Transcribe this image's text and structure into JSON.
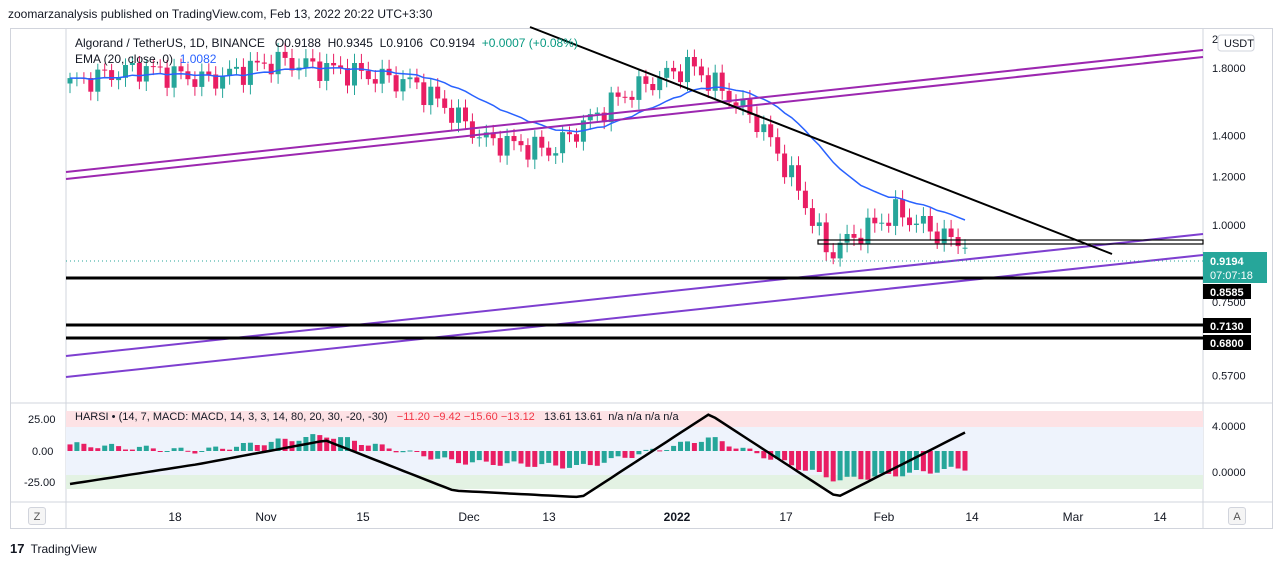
{
  "header": {
    "published": "zoomarzanalysis published on TradingView.com, Feb 13, 2022 20:22 UTC+3:30"
  },
  "legend": {
    "symbol": "Algorand / TetherUS, 1D, BINANCE",
    "o": "O0.9188",
    "h": "H0.9345",
    "l": "L0.9106",
    "c": "C0.9194",
    "chg": "+0.0007 (+0.08%)",
    "ema_label": "EMA (20, close, 0)",
    "ema_value": "1.0082"
  },
  "harsi": {
    "label": "HARSI • (14, 7, MACD: MACD, 14, 3, 3, 14, 80, 20, 30, -20, -30)",
    "values_red": "−11.20  −9.42  −15.60  −13.12",
    "values_green": "13.61  13.61",
    "values_na": "n/a  n/a  n/a  n/a"
  },
  "price_axis": {
    "currency": "USDT",
    "top_label": "2",
    "ticks": [
      "1.8000",
      "1.4000",
      "1.2000",
      "1.0000",
      "0.7500",
      "0.5700"
    ],
    "current_price": "0.9194",
    "countdown": "07:07:18",
    "levels": [
      "0.8585",
      "0.7130",
      "0.6800"
    ]
  },
  "osc_axis": {
    "left_ticks": [
      "25.00",
      "0.00",
      "-25.00"
    ],
    "right_ticks": [
      "4.0000",
      "0.0000"
    ]
  },
  "time_axis": {
    "labels": [
      "18",
      "Nov",
      "15",
      "Dec",
      "13",
      "2022",
      "17",
      "Feb",
      "14",
      "Mar",
      "14"
    ]
  },
  "buttons": {
    "log": "Z",
    "auto": "A"
  },
  "footer": {
    "brand": "TradingView"
  },
  "colors": {
    "up": "#26a69a",
    "down": "#e91e63",
    "ema": "#2962ff",
    "channel": "#9c27b0",
    "support": "#000000"
  },
  "chart_data": [
    {
      "type": "candlestick",
      "symbol": "Algorand / TetherUS",
      "interval": "1D",
      "exchange": "BINANCE",
      "y_scale": "log",
      "ylim": [
        0.52,
        2.0
      ],
      "x": [
        "2021-10-07",
        "2021-10-17",
        "2021-10-27",
        "2021-11-06",
        "2021-11-16",
        "2021-11-26",
        "2021-12-06",
        "2021-12-16",
        "2021-12-26",
        "2022-01-05",
        "2022-01-15",
        "2022-01-25",
        "2022-02-04",
        "2022-02-13"
      ],
      "close_approx": [
        1.7,
        1.8,
        1.72,
        1.85,
        1.78,
        1.7,
        1.38,
        1.32,
        1.62,
        1.82,
        1.47,
        0.9,
        1.05,
        0.9194
      ],
      "ema20_last": 1.0082,
      "horizontal_levels": [
        1.0,
        0.8585,
        0.713,
        0.68
      ],
      "current": {
        "open": 0.9188,
        "high": 0.9345,
        "low": 0.9106,
        "close": 0.9194,
        "change": 0.0007,
        "change_pct": 0.08
      }
    },
    {
      "type": "histogram",
      "name": "HARSI",
      "ylim": [
        -35,
        35
      ],
      "x": [
        "2021-10-07",
        "2021-10-27",
        "2021-11-16",
        "2021-12-06",
        "2021-12-26",
        "2022-01-05",
        "2022-01-25",
        "2022-02-13"
      ],
      "values_approx": [
        5,
        0,
        12,
        -8,
        -12,
        10,
        -22,
        -13
      ],
      "line_approx": [
        -25,
        -10,
        8,
        -30,
        -35,
        28,
        -35,
        14
      ]
    }
  ]
}
